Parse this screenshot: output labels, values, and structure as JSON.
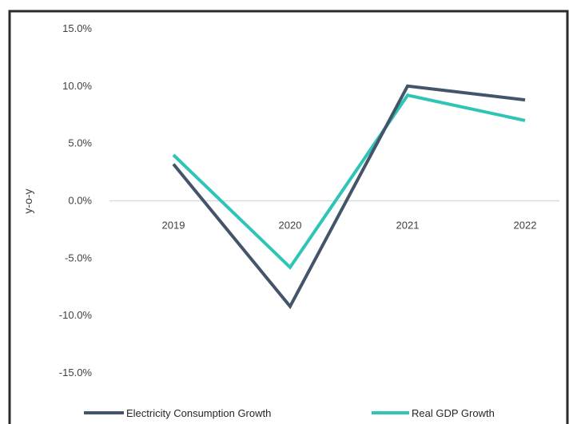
{
  "chart_data": {
    "type": "line",
    "title": "",
    "xlabel": "",
    "ylabel": "y-o-y",
    "x": [
      "2019",
      "2020",
      "2021",
      "2022"
    ],
    "ylim": [
      -15.0,
      15.0
    ],
    "yticks": [
      "15.0%",
      "10.0%",
      "5.0%",
      "0.0%",
      "-5.0%",
      "-10.0%",
      "-15.0%"
    ],
    "grid": false,
    "legend": "bottom",
    "series": [
      {
        "name": "Electricity Consumption Growth",
        "values": [
          3.2,
          -9.2,
          10.0,
          8.8
        ],
        "color": "#44546a"
      },
      {
        "name": "Real GDP Growth",
        "values": [
          4.0,
          -5.8,
          9.2,
          7.0
        ],
        "color": "#2ec4b6"
      }
    ]
  },
  "colors": {
    "frame": "#2b2b2b",
    "zero_line": "#d9d9d9",
    "text": "#404040"
  }
}
